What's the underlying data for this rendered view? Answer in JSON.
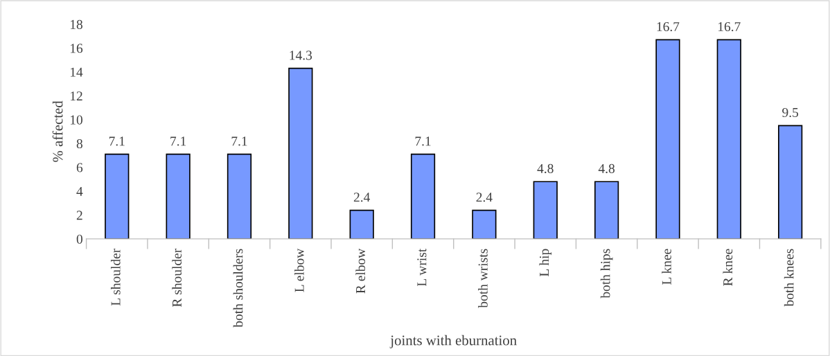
{
  "chart_data": {
    "type": "bar",
    "xlabel": "joints with eburnation",
    "ylabel": "% affected",
    "categories": [
      "L shoulder",
      "R shoulder",
      "both shoulders",
      "L elbow",
      "R elbow",
      "L wrist",
      "both wrists",
      "L hip",
      "both hips",
      "L knee",
      "R knee",
      "both knees"
    ],
    "values": [
      7.1,
      7.1,
      7.1,
      14.3,
      2.4,
      7.1,
      2.4,
      4.8,
      4.8,
      16.7,
      16.7,
      9.5
    ],
    "color": "#7799ff",
    "ylim": [
      0,
      18
    ],
    "yticks": [
      0,
      2,
      4,
      6,
      8,
      10,
      12,
      14,
      16,
      18
    ],
    "grid": false,
    "legend": false,
    "data_labels": true
  }
}
